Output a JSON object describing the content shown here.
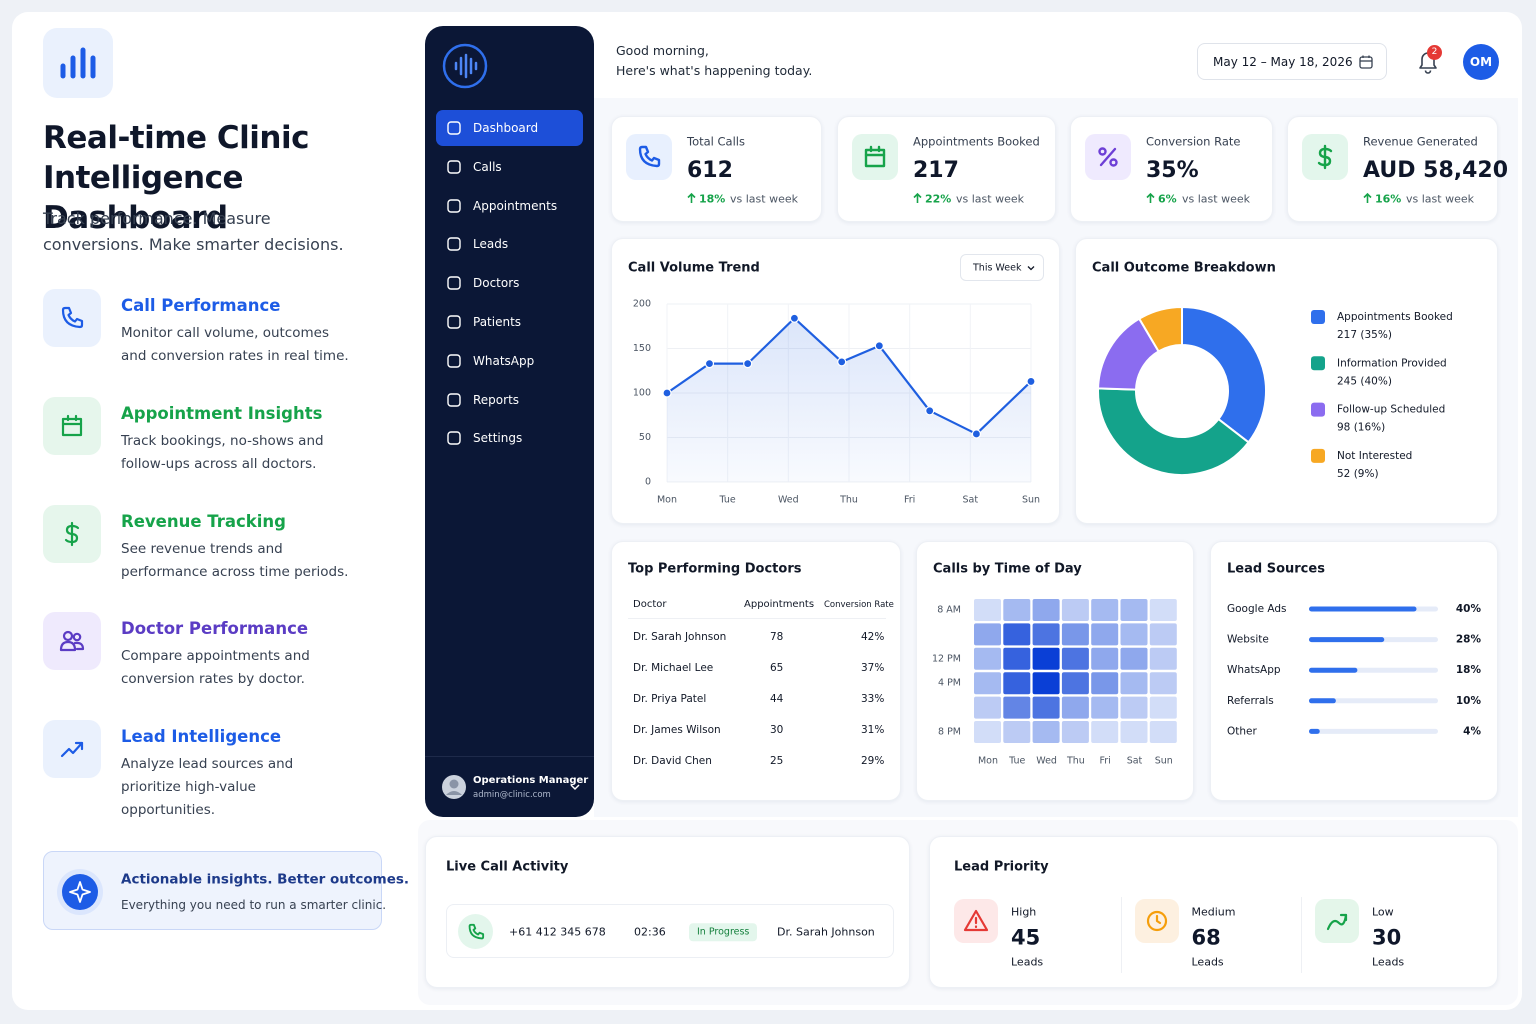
{
  "intro": {
    "title": "Real-time Clinic Intelligence Dashboard",
    "subtitle": "Track performance. Measure conversions. Make smarter decisions.",
    "features": [
      {
        "title": "Call Performance",
        "description": "Monitor call volume, outcomes and conversion rates in real time."
      },
      {
        "title": "Appointment Insights",
        "description": "Track bookings, no-shows and follow-ups across all doctors."
      },
      {
        "title": "Revenue Tracking",
        "description": "See revenue trends and performance across time periods."
      },
      {
        "title": "Doctor Performance",
        "description": "Compare appointments and conversion rates by doctor."
      },
      {
        "title": "Lead Intelligence",
        "description": "Analyze lead sources and prioritize high-value opportunities."
      }
    ],
    "callout": {
      "title": "Actionable insights. Better outcomes.",
      "text": "Everything you need to run a smarter clinic."
    }
  },
  "sidebar": {
    "nav": [
      "Dashboard",
      "Calls",
      "Appointments",
      "Leads",
      "Doctors",
      "Patients",
      "WhatsApp",
      "Reports",
      "Settings"
    ],
    "user": {
      "name": "Operations Manager",
      "email": "admin@clinic.com"
    }
  },
  "header": {
    "greeting": "Good morning,",
    "subgreeting": "Here's what's happening today.",
    "date_range": "May 12 – May 18, 2026",
    "notifications": "2",
    "avatar": "OM"
  },
  "kpis": [
    {
      "label": "Total Calls",
      "value": "612",
      "change": "18%",
      "comparison": "vs last week"
    },
    {
      "label": "Appointments Booked",
      "value": "217",
      "change": "22%",
      "comparison": "vs last week"
    },
    {
      "label": "Conversion Rate",
      "value": "35%",
      "change": "6%",
      "comparison": "vs last week"
    },
    {
      "label": "Revenue Generated",
      "value": "AUD 58,420",
      "change": "16%",
      "comparison": "vs last week"
    }
  ],
  "chart_data": [
    {
      "type": "line",
      "title": "Call Volume Trend",
      "filter": "This Week",
      "x": [
        0,
        0.7,
        1.33,
        2.1,
        2.88,
        3.5,
        4.33,
        5.1,
        6
      ],
      "values": [
        100,
        133,
        133,
        184,
        135,
        153,
        80,
        54,
        113
      ],
      "xlim": [
        0,
        6
      ],
      "xticks": [
        {
          "value": 0,
          "label": "Mon"
        },
        {
          "value": 1,
          "label": "Tue"
        },
        {
          "value": 2,
          "label": "Wed"
        },
        {
          "value": 3,
          "label": "Thu"
        },
        {
          "value": 4,
          "label": "Fri"
        },
        {
          "value": 5,
          "label": "Sat"
        },
        {
          "value": 6,
          "label": "Sun"
        }
      ],
      "ylim": [
        0,
        200
      ],
      "yticks": [
        0,
        50,
        100,
        150,
        200
      ],
      "color": "#1f5fe0",
      "grid": true
    },
    {
      "type": "pie",
      "title": "Call Outcome Breakdown",
      "categories": [
        "Appointments Booked",
        "Information Provided",
        "Follow-up Scheduled",
        "Not Interested"
      ],
      "values": [
        217,
        245,
        98,
        52
      ],
      "value_labels": [
        "217 (35%)",
        "245 (40%)",
        "98 (16%)",
        "52 (9%)"
      ],
      "colors": [
        "#2f6fec",
        "#14a38b",
        "#8b6cf0",
        "#f7a823"
      ]
    },
    {
      "type": "heatmap",
      "title": "Calls by Time of Day",
      "categories": [
        "Mon",
        "Tue",
        "Wed",
        "Thu",
        "Fri",
        "Sat",
        "Sun"
      ],
      "rows": [
        "8 AM",
        null,
        "12 PM",
        "4 PM",
        null,
        "8 PM"
      ],
      "values": [
        [
          1,
          3,
          4,
          2,
          3,
          3,
          1
        ],
        [
          4,
          8,
          7,
          5,
          4,
          3,
          2
        ],
        [
          3,
          8,
          10,
          7,
          4,
          4,
          2
        ],
        [
          3,
          8,
          10,
          7,
          5,
          3,
          2
        ],
        [
          2,
          6,
          7,
          4,
          3,
          2,
          1
        ],
        [
          1,
          2,
          3,
          2,
          1,
          1,
          1
        ]
      ],
      "color": "#0a3fd6"
    },
    {
      "type": "bar",
      "orientation": "horizontal",
      "title": "Lead Sources",
      "categories": [
        "Google Ads",
        "Website",
        "WhatsApp",
        "Referrals",
        "Other"
      ],
      "values": [
        40,
        28,
        18,
        10,
        4
      ],
      "value_labels": [
        "40%",
        "28%",
        "18%",
        "10%",
        "4%"
      ],
      "xlim": [
        0,
        48
      ],
      "color": "#2f6fec"
    }
  ],
  "doctors": {
    "title": "Top Performing Doctors",
    "columns": [
      "Doctor",
      "Appointments",
      "Conversion Rate"
    ],
    "rows": [
      [
        "Dr. Sarah Johnson",
        "78",
        "42%"
      ],
      [
        "Dr. Michael Lee",
        "65",
        "37%"
      ],
      [
        "Dr. Priya Patel",
        "44",
        "33%"
      ],
      [
        "Dr. James Wilson",
        "30",
        "31%"
      ],
      [
        "Dr. David Chen",
        "25",
        "29%"
      ]
    ]
  },
  "live_calls": {
    "title": "Live Call Activity",
    "calls": [
      {
        "phone": "+61 412 345 678",
        "duration": "02:36",
        "status": "In Progress",
        "doctor": "Dr. Sarah Johnson"
      }
    ]
  },
  "lead_priority": {
    "title": "Lead Priority",
    "levels": [
      {
        "label": "High",
        "count": "45",
        "unit": "Leads"
      },
      {
        "label": "Medium",
        "count": "68",
        "unit": "Leads"
      },
      {
        "label": "Low",
        "count": "30",
        "unit": "Leads"
      }
    ]
  }
}
